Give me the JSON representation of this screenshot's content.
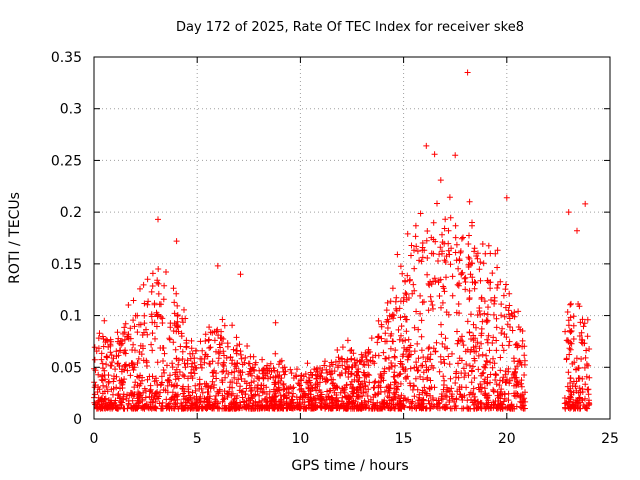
{
  "chart_data": {
    "type": "scatter",
    "title": "Day 172 of 2025, Rate Of TEC Index for receiver ske8",
    "xlabel": "GPS time / hours",
    "ylabel": "ROTI / TECUs",
    "xlim": [
      0,
      25
    ],
    "ylim": [
      0,
      0.35
    ],
    "grid": true,
    "marker": "+",
    "series_color": "#ff0000",
    "x_ticks": [
      {
        "value": 0,
        "label": "0"
      },
      {
        "value": 5,
        "label": "5"
      },
      {
        "value": 10,
        "label": "10"
      },
      {
        "value": 15,
        "label": "15"
      },
      {
        "value": 20,
        "label": "20"
      },
      {
        "value": 25,
        "label": "25"
      }
    ],
    "y_ticks": [
      {
        "value": 0,
        "label": "0"
      },
      {
        "value": 0.05,
        "label": "0.05"
      },
      {
        "value": 0.1,
        "label": "0.1"
      },
      {
        "value": 0.15,
        "label": "0.15"
      },
      {
        "value": 0.2,
        "label": "0.2"
      },
      {
        "value": 0.25,
        "label": "0.25"
      },
      {
        "value": 0.3,
        "label": "0.3"
      },
      {
        "value": 0.35,
        "label": "0.35"
      }
    ],
    "gaps": [
      [
        20.9,
        22.8
      ]
    ],
    "notable_points": [
      {
        "x": 0.5,
        "y": 0.095
      },
      {
        "x": 2.1,
        "y": 0.1
      },
      {
        "x": 3.1,
        "y": 0.193
      },
      {
        "x": 4.0,
        "y": 0.172
      },
      {
        "x": 6.0,
        "y": 0.148
      },
      {
        "x": 7.1,
        "y": 0.14
      },
      {
        "x": 8.8,
        "y": 0.093
      },
      {
        "x": 12.3,
        "y": 0.076
      },
      {
        "x": 14.7,
        "y": 0.159
      },
      {
        "x": 15.2,
        "y": 0.179
      },
      {
        "x": 16.1,
        "y": 0.264
      },
      {
        "x": 16.5,
        "y": 0.256
      },
      {
        "x": 16.8,
        "y": 0.231
      },
      {
        "x": 17.5,
        "y": 0.255
      },
      {
        "x": 18.1,
        "y": 0.335
      },
      {
        "x": 18.2,
        "y": 0.21
      },
      {
        "x": 19.2,
        "y": 0.16
      },
      {
        "x": 20.0,
        "y": 0.214
      },
      {
        "x": 23.0,
        "y": 0.2
      },
      {
        "x": 23.4,
        "y": 0.182
      },
      {
        "x": 23.8,
        "y": 0.208
      }
    ],
    "envelope": [
      {
        "x": 0,
        "y": 0.06
      },
      {
        "x": 1,
        "y": 0.075
      },
      {
        "x": 2,
        "y": 0.09
      },
      {
        "x": 3,
        "y": 0.12
      },
      {
        "x": 4,
        "y": 0.1
      },
      {
        "x": 5,
        "y": 0.06
      },
      {
        "x": 6,
        "y": 0.08
      },
      {
        "x": 7,
        "y": 0.07
      },
      {
        "x": 8,
        "y": 0.045
      },
      {
        "x": 9,
        "y": 0.05
      },
      {
        "x": 10,
        "y": 0.04
      },
      {
        "x": 11,
        "y": 0.045
      },
      {
        "x": 12,
        "y": 0.055
      },
      {
        "x": 13,
        "y": 0.05
      },
      {
        "x": 14,
        "y": 0.08
      },
      {
        "x": 15,
        "y": 0.12
      },
      {
        "x": 16,
        "y": 0.16
      },
      {
        "x": 17,
        "y": 0.17
      },
      {
        "x": 18,
        "y": 0.15
      },
      {
        "x": 19,
        "y": 0.14
      },
      {
        "x": 20,
        "y": 0.12
      },
      {
        "x": 20.9,
        "y": 0.06
      },
      {
        "x": 22.8,
        "y": 0.09
      },
      {
        "x": 23.5,
        "y": 0.1
      },
      {
        "x": 24,
        "y": 0.08
      }
    ],
    "floor": 0.01
  }
}
